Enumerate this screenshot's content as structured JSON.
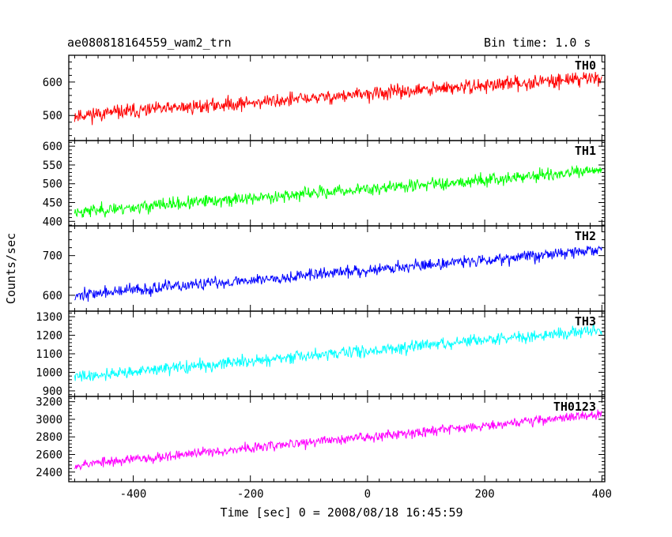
{
  "header": {
    "title": "ae080818164559_wam2_trn",
    "bin_time": "Bin time: 1.0 s"
  },
  "chart_data": {
    "type": "line",
    "xlabel": "Time [sec] 0 = 2008/08/18 16:45:59",
    "ylabel": "Counts/sec",
    "xlim": [
      -510,
      405
    ],
    "x_range": [
      -500,
      400
    ],
    "x_ticks": [
      -400,
      -200,
      0,
      200,
      400
    ],
    "grid": false,
    "series": [
      {
        "name": "TH0",
        "color": "#ff0000",
        "ylim": [
          425,
          680
        ],
        "ticks": [
          500,
          600
        ],
        "start": 500,
        "end": 615,
        "noise": 28,
        "seed": 11
      },
      {
        "name": "TH1",
        "color": "#00ff00",
        "ylim": [
          388,
          615
        ],
        "ticks": [
          400,
          450,
          500,
          550,
          600
        ],
        "start": 425,
        "end": 535,
        "noise": 22,
        "seed": 23
      },
      {
        "name": "TH2",
        "color": "#0000ff",
        "ylim": [
          560,
          775
        ],
        "ticks": [
          600,
          700
        ],
        "start": 600,
        "end": 715,
        "noise": 20,
        "seed": 37
      },
      {
        "name": "TH3",
        "color": "#00ffff",
        "ylim": [
          870,
          1330
        ],
        "ticks": [
          900,
          1000,
          1100,
          1200,
          1300
        ],
        "start": 975,
        "end": 1230,
        "noise": 42,
        "seed": 41
      },
      {
        "name": "TH0123",
        "color": "#ff00ff",
        "ylim": [
          2290,
          3260
        ],
        "ticks": [
          2400,
          2600,
          2800,
          3000,
          3200
        ],
        "start": 2480,
        "end": 3060,
        "noise": 75,
        "seed": 53
      }
    ]
  }
}
